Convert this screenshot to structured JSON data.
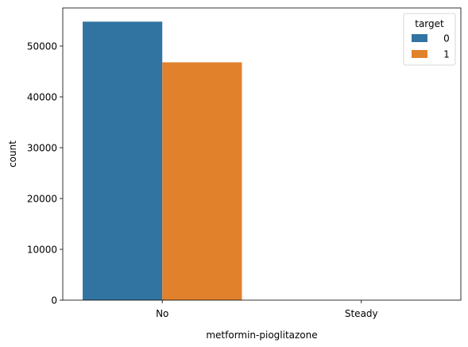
{
  "chart_data": {
    "type": "bar",
    "categories": [
      "No",
      "Steady"
    ],
    "series": [
      {
        "name": "0",
        "values": [
          54800,
          1
        ],
        "color": "#3274a1"
      },
      {
        "name": "1",
        "values": [
          46800,
          1
        ],
        "color": "#e1812c"
      }
    ],
    "xlabel": "metformin-pioglitazone",
    "ylabel": "count",
    "ylim": [
      0,
      57500
    ],
    "yticks": [
      0,
      10000,
      20000,
      30000,
      40000,
      50000
    ],
    "ytick_labels": [
      "0",
      "10000",
      "20000",
      "30000",
      "40000",
      "50000"
    ],
    "grid": false,
    "legend": {
      "title": "target",
      "placement": "top-right",
      "entries": [
        "0",
        "1"
      ]
    }
  }
}
